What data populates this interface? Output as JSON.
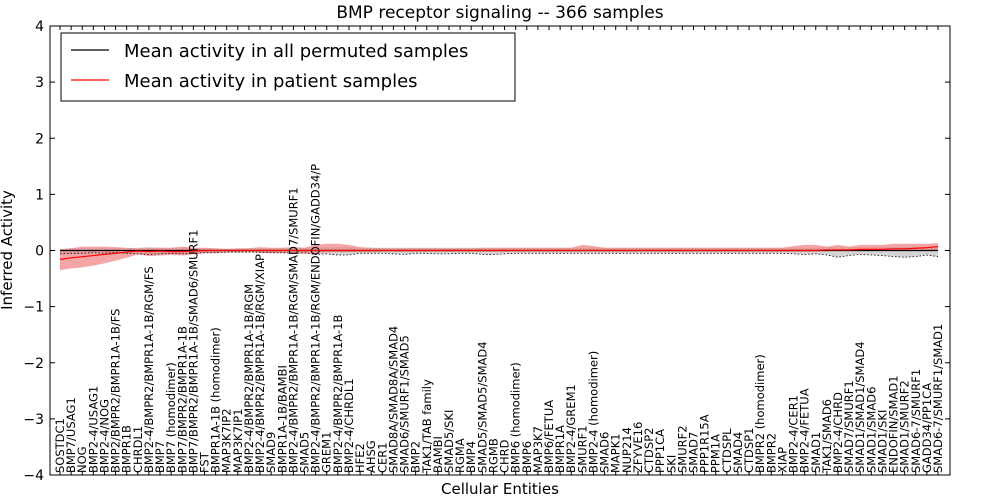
{
  "chart_data": {
    "type": "line",
    "title": "BMP receptor signaling -- 366 samples",
    "xlabel": "Cellular Entities",
    "ylabel": "Inferred Activity",
    "ylim": [
      -4,
      4
    ],
    "yticks": [
      4,
      3,
      2,
      1,
      0,
      -1,
      -2,
      -3,
      -4
    ],
    "ytick_labels": [
      "4",
      "3",
      "2",
      "1",
      "0",
      "−1",
      "−2",
      "−3",
      "−4"
    ],
    "legend_position": "top-left",
    "categories": [
      "SOSTDC1",
      "BMP7/USAG1",
      "NOG",
      "BMP2-4/USAG1",
      "BMP2-4/NOG",
      "BMP2/BMPR2/BMPR1A-1B/FS",
      "BMPR1B",
      "CHRDL1",
      "BMP2-4/BMPR2/BMPR1A-1B/RGM/FS",
      "BMP7",
      "BMP7 (homodimer)",
      "BMP7/BMPR2/BMPR1A-1B",
      "BMP7/BMPR2/BMPR1A-1B/SMAD6/SMURF1",
      "FST",
      "BMPR1A-1B (homodimer)",
      "MAP3K7IP2",
      "MAP3K7IP1",
      "BMP2-4/BMPR2/BMPR1A-1B/RGM",
      "BMP2-4/BMPR2/BMPR1A-1B/RGM/XIAP",
      "SMAD9",
      "BMPR1A-1B/BAMBI",
      "BMP2-4/BMPR2/BMPR1A-1B/RGM/SMAD7/SMURF1",
      "SMAD5",
      "BMP2-4/BMPR2/BMPR1A-1B/RGM/ENDOFIN/GADD34/P",
      "GREM1",
      "BMP2-4/BMPR2/BMPR1A-1B",
      "BMP2-4/CHRDL1",
      "HFE2",
      "AHSG",
      "CER1",
      "SMAD8A/SMAD8A/SMAD4",
      "SMAD6/SMURF1/SMAD5",
      "BMP2",
      "TAK1/TAB family",
      "BAMBI",
      "SMAD5/SKI",
      "RGMA",
      "BMP4",
      "SMAD5/SMAD5/SMAD4",
      "RGMB",
      "CHRD",
      "BMP6 (homodimer)",
      "BMP6",
      "MAP3K7",
      "BMP6/FETUA",
      "BMPR1A",
      "BMP2-4/GREM1",
      "SMURF1",
      "BMP2-4 (homodimer)",
      "SMAD6",
      "MAPK1",
      "NUP214",
      "ZFYVE16",
      "CTDSP2",
      "PPP1CA",
      "SKI",
      "SMURF2",
      "SMAD7",
      "PPP1R15A",
      "PPM1A",
      "CTDSPL",
      "SMAD4",
      "CTDSP1",
      "BMPR2 (homodimer)",
      "BMPR2",
      "XIAP",
      "BMP2-4/CER1",
      "BMP2-4/FETUA",
      "SMAD1",
      "TAK1/SMAD6",
      "BMP2-4/CHRD",
      "SMAD7/SMURF1",
      "SMAD1/SMAD1/SMAD4",
      "SMAD1/SMAD6",
      "SMAD1/SKI",
      "ENDOFIN/SMAD1",
      "SMAD1/SMURF2",
      "SMAD6-7/SMURF1",
      "GADD34/PP1CA",
      "SMAD6-7/SMURF1/SMAD1"
    ],
    "series": [
      {
        "name": "Mean activity in all permuted samples",
        "color": "#000000",
        "values": [
          0.0,
          0.0,
          0.0,
          0.0,
          0.0,
          0.0,
          0.0,
          0.0,
          0.0,
          0.0,
          0.0,
          0.0,
          0.0,
          0.0,
          0.0,
          0.0,
          0.0,
          0.0,
          0.0,
          0.0,
          0.0,
          0.0,
          0.0,
          0.0,
          0.0,
          0.0,
          0.0,
          0.0,
          0.0,
          0.0,
          0.0,
          0.0,
          0.0,
          0.0,
          0.0,
          0.0,
          0.0,
          0.0,
          0.0,
          0.0,
          0.0,
          0.0,
          0.0,
          0.0,
          0.0,
          0.0,
          0.0,
          0.0,
          0.0,
          0.0,
          0.0,
          0.0,
          0.0,
          0.0,
          0.0,
          0.0,
          0.0,
          0.0,
          0.0,
          0.0,
          0.0,
          0.0,
          0.0,
          0.0,
          0.0,
          0.0,
          0.0,
          0.0,
          0.0,
          0.0,
          0.0,
          0.0,
          0.0,
          0.0,
          0.0,
          0.0,
          0.0,
          0.0,
          0.0,
          0.0
        ],
        "lower": [
          -0.06,
          -0.05,
          -0.05,
          -0.04,
          -0.05,
          -0.03,
          -0.05,
          -0.06,
          -0.07,
          -0.06,
          -0.05,
          -0.06,
          -0.05,
          -0.04,
          -0.04,
          -0.03,
          -0.03,
          -0.03,
          -0.03,
          -0.04,
          -0.04,
          -0.05,
          -0.04,
          -0.07,
          -0.06,
          -0.08,
          -0.08,
          -0.05,
          -0.05,
          -0.05,
          -0.06,
          -0.07,
          -0.05,
          -0.05,
          -0.06,
          -0.06,
          -0.05,
          -0.05,
          -0.07,
          -0.07,
          -0.06,
          -0.05,
          -0.05,
          -0.05,
          -0.05,
          -0.05,
          -0.05,
          -0.05,
          -0.05,
          -0.05,
          -0.05,
          -0.05,
          -0.05,
          -0.05,
          -0.05,
          -0.05,
          -0.05,
          -0.05,
          -0.05,
          -0.05,
          -0.05,
          -0.05,
          -0.05,
          -0.05,
          -0.05,
          -0.05,
          -0.06,
          -0.07,
          -0.06,
          -0.08,
          -0.12,
          -0.09,
          -0.07,
          -0.08,
          -0.09,
          -0.11,
          -0.12,
          -0.11,
          -0.08,
          -0.11
        ],
        "upper": [
          0.03,
          0.04,
          0.04,
          0.04,
          0.04,
          0.04,
          0.04,
          0.05,
          0.06,
          0.05,
          0.05,
          0.05,
          0.05,
          0.04,
          0.03,
          0.03,
          0.03,
          0.04,
          0.04,
          0.04,
          0.04,
          0.05,
          0.05,
          0.06,
          0.06,
          0.06,
          0.06,
          0.05,
          0.05,
          0.05,
          0.05,
          0.05,
          0.05,
          0.05,
          0.05,
          0.05,
          0.05,
          0.05,
          0.05,
          0.05,
          0.05,
          0.05,
          0.05,
          0.05,
          0.05,
          0.05,
          0.05,
          0.05,
          0.05,
          0.05,
          0.05,
          0.05,
          0.05,
          0.05,
          0.05,
          0.05,
          0.05,
          0.05,
          0.05,
          0.05,
          0.05,
          0.05,
          0.05,
          0.05,
          0.05,
          0.05,
          0.05,
          0.05,
          0.05,
          0.06,
          0.06,
          0.06,
          0.06,
          0.06,
          0.07,
          0.07,
          0.07,
          0.07,
          0.07,
          0.07
        ]
      },
      {
        "name": "Mean activity in patient samples",
        "color": "#ff0000",
        "band_color": "#f08080",
        "values": [
          -0.16,
          -0.13,
          -0.11,
          -0.09,
          -0.07,
          -0.05,
          -0.03,
          -0.01,
          -0.02,
          -0.01,
          -0.02,
          -0.02,
          -0.01,
          0.0,
          0.0,
          0.0,
          0.0,
          0.0,
          0.0,
          0.0,
          0.0,
          0.0,
          0.0,
          0.0,
          0.0,
          0.0,
          0.0,
          0.0,
          0.0,
          0.0,
          0.0,
          0.0,
          0.0,
          0.0,
          0.0,
          0.0,
          0.0,
          0.0,
          0.0,
          0.0,
          0.0,
          0.0,
          0.0,
          0.0,
          0.0,
          0.0,
          0.0,
          0.0,
          0.0,
          0.0,
          0.0,
          0.0,
          0.0,
          0.0,
          0.0,
          0.0,
          0.0,
          0.0,
          0.0,
          0.0,
          0.0,
          0.0,
          0.0,
          0.0,
          0.0,
          0.0,
          0.0,
          0.0,
          0.0,
          0.01,
          0.01,
          0.01,
          0.02,
          0.02,
          0.02,
          0.03,
          0.03,
          0.04,
          0.05,
          0.07
        ],
        "lower": [
          -0.35,
          -0.32,
          -0.3,
          -0.27,
          -0.23,
          -0.18,
          -0.13,
          -0.07,
          -0.1,
          -0.09,
          -0.08,
          -0.09,
          -0.07,
          -0.05,
          -0.05,
          -0.03,
          -0.03,
          -0.02,
          -0.04,
          -0.05,
          -0.05,
          -0.04,
          -0.06,
          -0.05,
          -0.03,
          -0.03,
          -0.03,
          -0.03,
          -0.03,
          -0.02,
          -0.02,
          -0.02,
          -0.02,
          -0.02,
          -0.02,
          -0.02,
          -0.02,
          -0.02,
          -0.02,
          -0.02,
          -0.02,
          -0.02,
          -0.02,
          -0.02,
          -0.02,
          -0.02,
          -0.02,
          -0.02,
          -0.02,
          -0.02,
          -0.02,
          -0.02,
          -0.02,
          -0.02,
          -0.02,
          -0.02,
          -0.02,
          -0.02,
          -0.02,
          -0.02,
          -0.02,
          -0.02,
          -0.02,
          -0.02,
          -0.02,
          -0.02,
          -0.02,
          -0.02,
          -0.02,
          -0.01,
          -0.01,
          -0.01,
          -0.01,
          0.0,
          0.0,
          0.0,
          0.0,
          0.0,
          0.0,
          0.0
        ],
        "upper": [
          0.02,
          0.04,
          0.07,
          0.07,
          0.07,
          0.06,
          0.05,
          0.04,
          0.05,
          0.05,
          0.05,
          0.07,
          0.05,
          0.05,
          0.04,
          0.03,
          0.04,
          0.04,
          0.06,
          0.05,
          0.05,
          0.06,
          0.05,
          0.1,
          0.12,
          0.12,
          0.1,
          0.06,
          0.05,
          0.04,
          0.04,
          0.04,
          0.04,
          0.04,
          0.04,
          0.04,
          0.04,
          0.04,
          0.05,
          0.05,
          0.05,
          0.05,
          0.05,
          0.05,
          0.05,
          0.05,
          0.05,
          0.1,
          0.08,
          0.05,
          0.05,
          0.05,
          0.05,
          0.05,
          0.05,
          0.05,
          0.05,
          0.05,
          0.05,
          0.05,
          0.05,
          0.05,
          0.05,
          0.05,
          0.05,
          0.05,
          0.08,
          0.1,
          0.1,
          0.07,
          0.1,
          0.07,
          0.1,
          0.1,
          0.1,
          0.12,
          0.12,
          0.12,
          0.12,
          0.13
        ]
      }
    ]
  }
}
